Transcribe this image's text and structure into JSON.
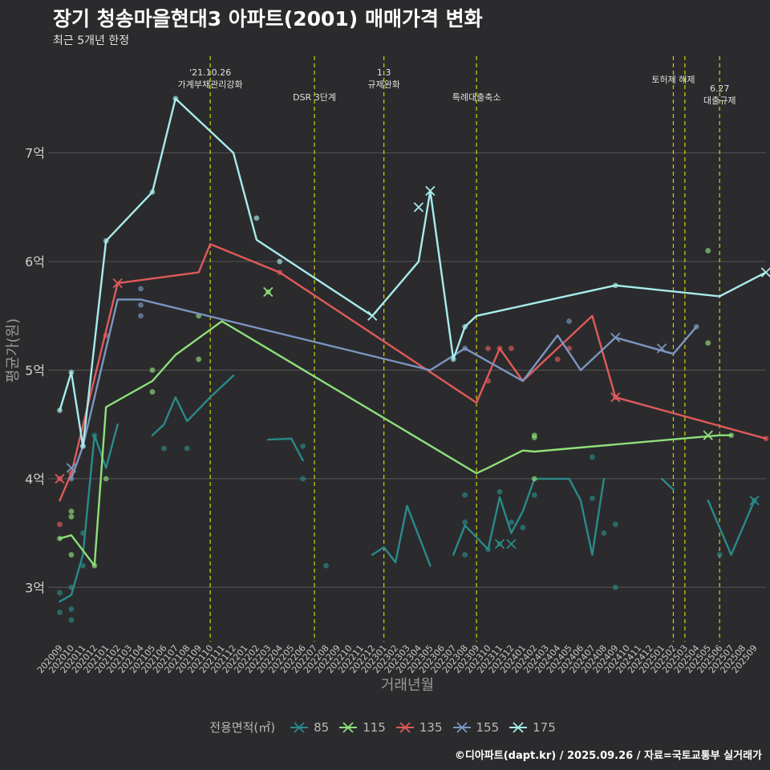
{
  "title": "장기 청송마을현대3 아파트(2001) 매매가격 변화",
  "subtitle": "최근 5개년 한정",
  "footer": "©디아파트(dapt.kr) / 2025.09.26 / 자료=국토교통부 실거래가",
  "colors": {
    "background": "#2b2b2d",
    "grid": "#555558",
    "event_line": "#d4d400",
    "85": "#2a8a8a",
    "115": "#8fe07a",
    "135": "#e05a5a",
    "155": "#7b96c2",
    "175": "#a8ecec"
  },
  "chart_data": {
    "type": "line",
    "title": "장기 청송마을현대3 아파트(2001) 매매가격 변화",
    "subtitle": "최근 5개년 한정",
    "xlabel": "거래년월",
    "ylabel": "평균가(원)",
    "ylim": [
      2.5,
      7.95
    ],
    "y_ticks": [
      3,
      4,
      5,
      6,
      7
    ],
    "y_tick_labels": [
      "3억",
      "4억",
      "5억",
      "6억",
      "7억"
    ],
    "x_start": "202009",
    "x_months": 61,
    "x_tick_labels": [
      "202009",
      "202010",
      "202011",
      "202012",
      "202101",
      "202102",
      "202103",
      "202104",
      "202105",
      "202106",
      "202107",
      "202108",
      "202109",
      "202110",
      "202111",
      "202112",
      "202201",
      "202202",
      "202203",
      "202204",
      "202205",
      "202206",
      "202207",
      "202208",
      "202209",
      "202210",
      "202211",
      "202212",
      "202301",
      "202302",
      "202303",
      "202304",
      "202305",
      "202306",
      "202307",
      "202308",
      "202309",
      "202310",
      "202311",
      "202312",
      "202401",
      "202402",
      "202403",
      "202404",
      "202405",
      "202406",
      "202407",
      "202408",
      "202409",
      "202410",
      "202411",
      "202412",
      "202501",
      "202502",
      "202503",
      "202504",
      "202505",
      "202506",
      "202507",
      "202508",
      "202509"
    ],
    "legend_title": "전용면적(㎡)",
    "events": [
      {
        "month": 13,
        "label": "'21.10.26\n가계부채관리강화"
      },
      {
        "month": 22,
        "label": "DSR 3단계"
      },
      {
        "month": 28,
        "label": "1.3\n규제완화"
      },
      {
        "month": 36,
        "label": "특례대출축소"
      },
      {
        "month": 53,
        "label": "토허제 해제"
      },
      {
        "month": 54,
        "label": ""
      },
      {
        "month": 57,
        "label": "6.27\n대출규제"
      }
    ],
    "series": [
      {
        "name": "85",
        "line": [
          [
            0,
            2.87
          ],
          [
            1,
            2.93
          ],
          [
            2,
            3.3
          ],
          [
            3,
            4.4
          ],
          [
            4,
            4.1
          ],
          [
            5,
            4.5
          ],
          null,
          [
            8,
            4.4
          ],
          [
            9,
            4.5
          ],
          [
            10,
            4.75
          ],
          [
            11,
            4.53
          ],
          [
            13,
            4.75
          ],
          [
            15,
            4.95
          ],
          null,
          [
            18,
            4.36
          ],
          [
            20,
            4.37
          ],
          [
            21,
            4.17
          ],
          null,
          [
            27,
            3.3
          ],
          [
            28,
            3.37
          ],
          [
            29,
            3.23
          ],
          [
            30,
            3.75
          ],
          [
            32,
            3.2
          ],
          null,
          [
            34,
            3.3
          ],
          [
            35,
            3.57
          ],
          [
            37,
            3.35
          ],
          [
            38,
            3.83
          ],
          [
            39,
            3.5
          ],
          [
            40,
            3.7
          ],
          [
            41,
            4.0
          ],
          [
            42,
            4.0
          ],
          [
            43,
            4.0
          ],
          [
            44,
            4.0
          ],
          [
            45,
            3.8
          ],
          [
            46,
            3.3
          ],
          [
            47,
            4.0
          ],
          null,
          [
            52,
            4.0
          ],
          [
            53,
            3.9
          ],
          null,
          [
            56,
            3.8
          ],
          [
            58,
            3.3
          ],
          [
            60,
            3.8
          ]
        ],
        "points": [
          [
            0,
            2.95
          ],
          [
            0,
            2.77
          ],
          [
            1,
            3.0
          ],
          [
            1,
            2.8
          ],
          [
            1,
            2.7
          ],
          [
            2,
            3.5
          ],
          [
            2,
            3.2
          ],
          [
            3,
            4.4
          ],
          [
            9,
            4.28
          ],
          [
            11,
            4.28
          ],
          [
            21,
            4.3
          ],
          [
            21,
            4.0
          ],
          [
            23,
            3.2
          ],
          [
            35,
            3.85
          ],
          [
            35,
            3.6
          ],
          [
            35,
            3.3
          ],
          [
            37,
            3.35
          ],
          [
            38,
            3.88
          ],
          [
            38,
            3.4
          ],
          [
            39,
            3.6
          ],
          [
            40,
            3.55
          ],
          [
            41,
            3.85
          ],
          [
            46,
            4.2
          ],
          [
            46,
            3.82
          ],
          [
            47,
            3.5
          ],
          [
            48,
            3.0
          ],
          [
            48,
            3.58
          ],
          [
            57,
            3.3
          ],
          [
            60,
            3.8
          ]
        ],
        "crosses": [
          [
            38,
            3.4
          ],
          [
            39,
            3.4
          ],
          [
            60,
            3.8
          ]
        ]
      },
      {
        "name": "115",
        "line": [
          [
            0,
            3.45
          ],
          [
            1,
            3.48
          ],
          [
            3,
            3.2
          ],
          [
            4,
            4.66
          ],
          [
            8,
            4.9
          ],
          [
            10,
            5.14
          ],
          [
            14,
            5.45
          ],
          [
            36,
            4.05
          ],
          [
            37,
            4.1
          ],
          [
            40,
            4.26
          ],
          [
            41,
            4.25
          ],
          [
            57,
            4.4
          ],
          [
            58,
            4.4
          ]
        ],
        "points": [
          [
            0,
            3.45
          ],
          [
            1,
            3.7
          ],
          [
            1,
            3.65
          ],
          [
            1,
            3.3
          ],
          [
            3,
            3.2
          ],
          [
            4,
            4.0
          ],
          [
            8,
            5.0
          ],
          [
            8,
            4.8
          ],
          [
            12,
            5.5
          ],
          [
            12,
            5.1
          ],
          [
            18,
            5.72
          ],
          [
            41,
            4.4
          ],
          [
            41,
            4.38
          ],
          [
            41,
            4.0
          ],
          [
            56,
            6.1
          ],
          [
            56,
            5.25
          ],
          [
            58,
            4.4
          ]
        ],
        "crosses": [
          [
            18,
            5.72
          ],
          [
            56,
            4.4
          ]
        ]
      },
      {
        "name": "135",
        "line": [
          [
            0,
            3.8
          ],
          [
            1,
            4.05
          ],
          [
            5,
            5.8
          ],
          [
            12,
            5.9
          ],
          [
            13,
            6.16
          ],
          [
            19,
            5.9
          ],
          [
            36,
            4.7
          ],
          [
            38,
            5.2
          ],
          [
            40,
            4.9
          ],
          [
            46,
            5.5
          ],
          [
            48,
            4.75
          ],
          [
            61,
            4.37
          ]
        ],
        "points": [
          [
            0,
            3.58
          ],
          [
            0,
            4.0
          ],
          [
            1,
            4.05
          ],
          [
            4,
            5.32
          ],
          [
            19,
            5.9
          ],
          [
            37,
            5.2
          ],
          [
            37,
            4.9
          ],
          [
            38,
            5.2
          ],
          [
            39,
            5.2
          ],
          [
            43,
            5.1
          ],
          [
            44,
            5.2
          ],
          [
            48,
            4.75
          ],
          [
            61,
            4.37
          ]
        ],
        "crosses": [
          [
            0,
            4.0
          ],
          [
            5,
            5.8
          ],
          [
            48,
            4.75
          ]
        ]
      },
      {
        "name": "155",
        "line": [
          [
            1,
            4.0
          ],
          [
            2,
            4.3
          ],
          [
            5,
            5.65
          ],
          [
            7,
            5.65
          ],
          [
            32,
            5.0
          ],
          [
            35,
            5.2
          ],
          [
            40,
            4.9
          ],
          [
            43,
            5.32
          ],
          [
            45,
            5.0
          ],
          [
            48,
            5.3
          ],
          [
            53,
            5.15
          ],
          [
            55,
            5.4
          ]
        ],
        "points": [
          [
            1,
            4.0
          ],
          [
            2,
            4.3
          ],
          [
            7,
            5.75
          ],
          [
            7,
            5.6
          ],
          [
            7,
            5.5
          ],
          [
            35,
            5.2
          ],
          [
            44,
            5.45
          ],
          [
            55,
            5.4
          ]
        ],
        "crosses": [
          [
            1,
            4.1
          ],
          [
            48,
            5.3
          ],
          [
            52,
            5.2
          ]
        ]
      },
      {
        "name": "175",
        "line": [
          [
            0,
            4.63
          ],
          [
            1,
            4.98
          ],
          [
            2,
            4.3
          ],
          [
            4,
            6.19
          ],
          [
            8,
            6.64
          ],
          [
            10,
            7.5
          ],
          [
            15,
            7.0
          ],
          [
            17,
            6.2
          ],
          [
            27,
            5.5
          ],
          [
            31,
            6.0
          ],
          [
            32,
            6.65
          ],
          [
            34,
            5.1
          ],
          [
            35,
            5.4
          ],
          [
            36,
            5.5
          ],
          [
            48,
            5.78
          ],
          [
            57,
            5.68
          ],
          [
            61,
            5.9
          ]
        ],
        "points": [
          [
            0,
            4.63
          ],
          [
            1,
            4.98
          ],
          [
            2,
            4.3
          ],
          [
            4,
            6.19
          ],
          [
            8,
            6.64
          ],
          [
            10,
            7.5
          ],
          [
            17,
            6.4
          ],
          [
            19,
            6.0
          ],
          [
            34,
            5.1
          ],
          [
            35,
            5.4
          ],
          [
            48,
            5.78
          ]
        ],
        "crosses": [
          [
            27,
            5.5
          ],
          [
            31,
            6.5
          ],
          [
            32,
            6.65
          ],
          [
            61,
            5.9
          ]
        ]
      }
    ]
  }
}
